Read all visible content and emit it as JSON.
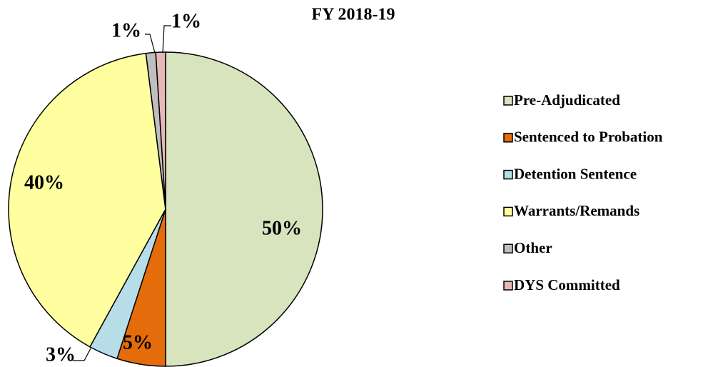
{
  "chart_data": {
    "type": "pie",
    "title": "FY 2018-19",
    "categories": [
      "Pre-Adjudicated",
      "Sentenced to Probation",
      "Detention Sentence",
      "Warrants/Remands",
      "Other",
      "DYS Committed"
    ],
    "values": [
      50,
      5,
      3,
      40,
      1,
      1
    ],
    "value_labels": [
      "50%",
      "5%",
      "3%",
      "40%",
      "1%",
      "1%"
    ],
    "colors": [
      "#d7e4bd",
      "#e46c0a",
      "#b7dee8",
      "#ffff9f",
      "#bfbfbf",
      "#e6b9b8"
    ],
    "legend": "right"
  }
}
